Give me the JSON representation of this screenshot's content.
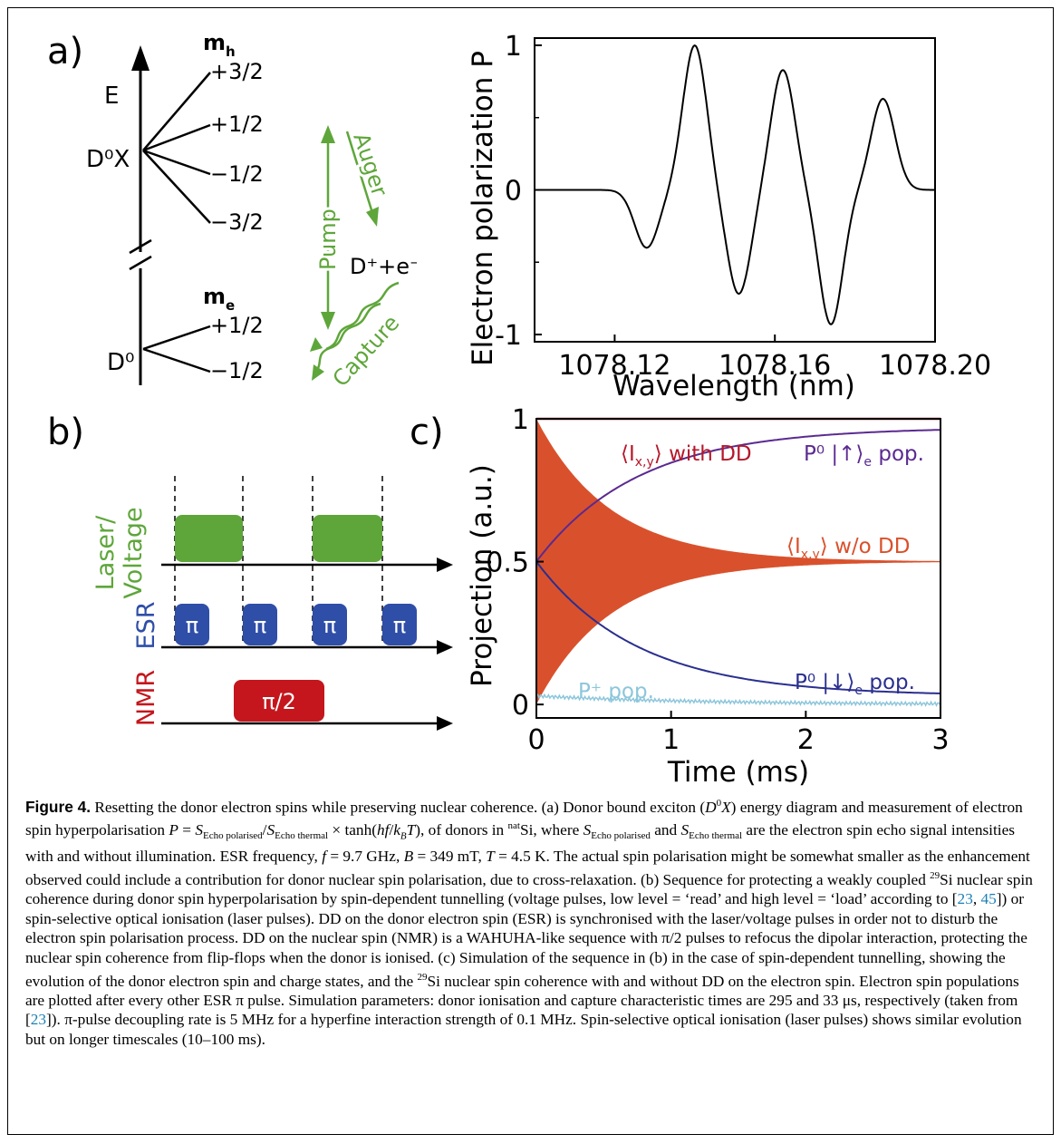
{
  "panels": {
    "a_label": "a)",
    "b_label": "b)",
    "c_label": "c)"
  },
  "energy_diagram": {
    "axis_label": "E",
    "mh_label": "m",
    "mh_sub": "h",
    "me_label": "m",
    "me_sub": "e",
    "dox_label": "D⁰X",
    "d0_label": "D⁰",
    "ionised_label": "D⁺+e⁻",
    "mh_levels": [
      "+3/2",
      "+1/2",
      "−1/2",
      "−3/2"
    ],
    "me_levels": [
      "+1/2",
      "−1/2"
    ],
    "pump_label": "Pump",
    "auger_label": "Auger",
    "capture_label": "Capture",
    "process_color": "#5ea63a"
  },
  "sequence": {
    "rows": [
      {
        "name": "Laser/\nVoltage",
        "line1": "Laser/",
        "line2": "Voltage",
        "color": "#5ea63a"
      },
      {
        "name": "ESR",
        "color": "#2e4ea8",
        "pulse_label": "π"
      },
      {
        "name": "NMR",
        "color": "#c4161c",
        "pulse_label": "π/2"
      }
    ]
  },
  "chart_data": [
    {
      "type": "line",
      "title": "",
      "xlabel": "Wavelength (nm)",
      "ylabel": "Electron polarization P",
      "xlim": [
        1078.1,
        1078.2
      ],
      "ylim": [
        -1.05,
        1.05
      ],
      "xticks": [
        "1078.12",
        "1078.16",
        "1078.20"
      ],
      "yticks": [
        "-1",
        "0",
        "1"
      ],
      "series": [
        {
          "values_desc": "polarization spectrum",
          "peaks": [
            {
              "x": 1078.128,
              "y": -0.4
            },
            {
              "x": 1078.14,
              "y": 1.0
            },
            {
              "x": 1078.151,
              "y": -0.72
            },
            {
              "x": 1078.162,
              "y": 0.83
            },
            {
              "x": 1078.174,
              "y": -0.93
            },
            {
              "x": 1078.187,
              "y": 0.63
            }
          ]
        }
      ]
    },
    {
      "type": "line",
      "title": "",
      "xlabel": "Time (ms)",
      "ylabel": "Projection (a.u.)",
      "xlim": [
        0,
        3
      ],
      "ylim": [
        0,
        1
      ],
      "xticks": [
        "0",
        "1",
        "2",
        "3"
      ],
      "yticks": [
        "0",
        "0.5",
        "1"
      ],
      "series": [
        {
          "name": "⟨Ix,y⟩ with DD",
          "color": "#b5182b",
          "values": "constant 1"
        },
        {
          "name": "⟨Ix,y⟩ w/o DD",
          "color": "#d9512c",
          "values": "oscillating envelope decaying to 0.5"
        },
        {
          "name": "P⁰ |↑⟩e pop.",
          "color": "#5b2a91",
          "values": "0.5 rising to 0.97"
        },
        {
          "name": "P⁰ |↓⟩e pop.",
          "color": "#2a2f8f",
          "values": "0.5 falling to 0.03"
        },
        {
          "name": "P⁺ pop.",
          "color": "#8cc6db",
          "values": "≈0.03 falling to 0"
        }
      ],
      "labels": {
        "with_dd_a": "⟨I",
        "with_dd_sub": "x,y",
        "with_dd_b": "⟩ with DD",
        "wo_dd_a": "⟨I",
        "wo_dd_sub": "x,y",
        "wo_dd_b": "⟩ w/o DD",
        "up_a": "P⁰ |↑⟩",
        "up_sub": "e",
        "up_b": " pop.",
        "down_a": "P⁰ |↓⟩",
        "down_sub": "e",
        "down_b": " pop.",
        "pplus": "P⁺ pop."
      }
    }
  ],
  "caption": {
    "fig_label": "Figure 4.",
    "title": " Resetting the donor electron spins while preserving nuclear coherence."
  }
}
